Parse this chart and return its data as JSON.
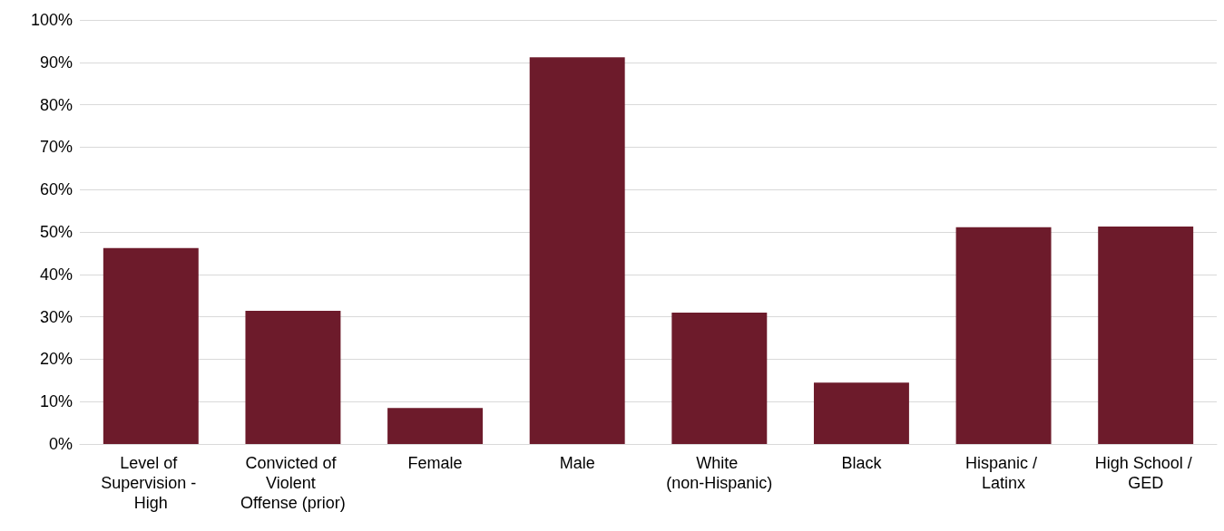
{
  "chart_data": {
    "type": "bar",
    "categories": [
      "Level of Supervision - High",
      "Convicted of Violent Offense (prior)",
      "Female",
      "Male",
      "White (non-Hispanic)",
      "Black",
      "Hispanic / Latinx",
      "High School / GED"
    ],
    "values": [
      46.2,
      31.4,
      8.5,
      91.2,
      31.0,
      14.5,
      51.1,
      51.3
    ],
    "color": "#6d1b2b",
    "ylim": [
      0,
      100
    ],
    "yticks": [
      {
        "value": 0,
        "label": "0%"
      },
      {
        "value": 10,
        "label": "10%"
      },
      {
        "value": 20,
        "label": "20%"
      },
      {
        "value": 30,
        "label": "30%"
      },
      {
        "value": 40,
        "label": "40%"
      },
      {
        "value": 50,
        "label": "50%"
      },
      {
        "value": 60,
        "label": "60%"
      },
      {
        "value": 70,
        "label": "70%"
      },
      {
        "value": 80,
        "label": "80%"
      },
      {
        "value": 90,
        "label": "90%"
      },
      {
        "value": 100,
        "label": "100%"
      }
    ],
    "grid": "y"
  }
}
